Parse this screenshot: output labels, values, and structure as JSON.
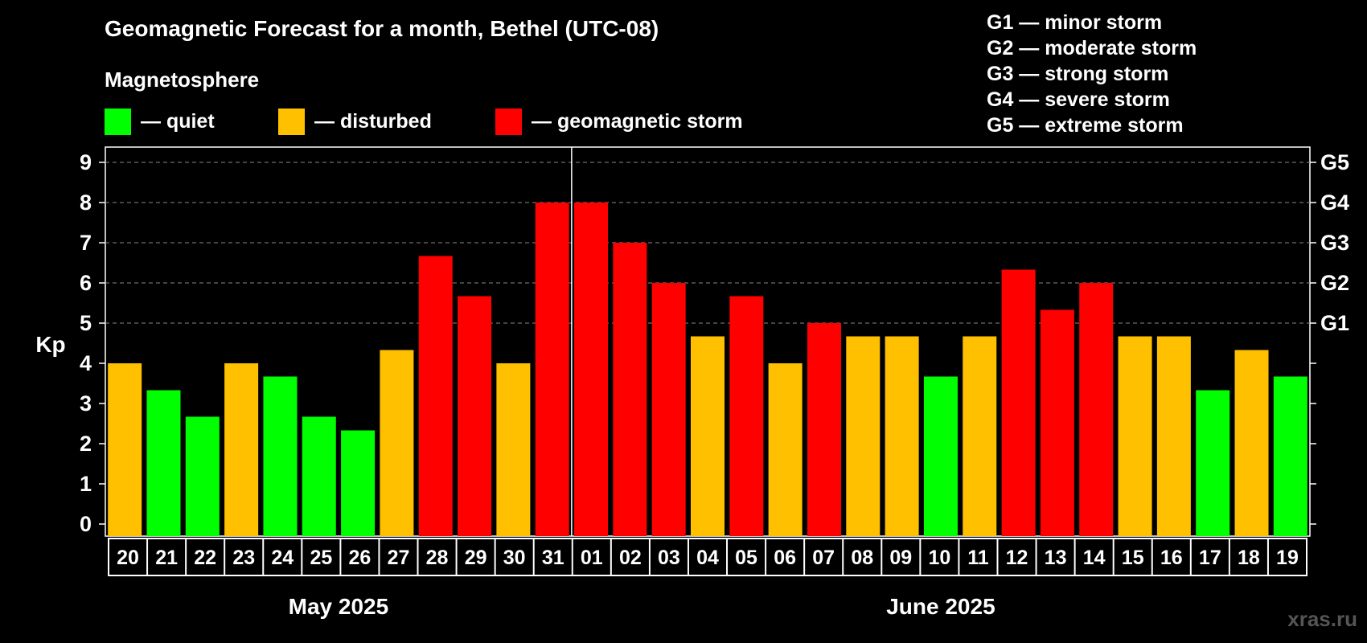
{
  "title": "Geomagnetic Forecast for a month, Bethel (UTC-08)",
  "legend": {
    "title": "Magnetosphere",
    "items": [
      {
        "label": "— quiet",
        "color": "#00ff00"
      },
      {
        "label": "— disturbed",
        "color": "#ffc000"
      },
      {
        "label": "— geomagnetic storm",
        "color": "#ff0000"
      }
    ]
  },
  "g_scale": [
    "G1 — minor storm",
    "G2 — moderate storm",
    "G3 — strong storm",
    "G4 — severe storm",
    "G5 — extreme storm"
  ],
  "watermark": "xras.ru",
  "chart_data": {
    "type": "bar",
    "ylabel": "Kp",
    "ylim": [
      0,
      9
    ],
    "y_ticks": [
      "0",
      "1",
      "2",
      "3",
      "4",
      "5",
      "6",
      "7",
      "8",
      "9"
    ],
    "right_axis_labels": [
      {
        "kp": 5,
        "label": "G1"
      },
      {
        "kp": 6,
        "label": "G2"
      },
      {
        "kp": 7,
        "label": "G3"
      },
      {
        "kp": 8,
        "label": "G4"
      },
      {
        "kp": 9,
        "label": "G5"
      }
    ],
    "grid": "dashed horizontal at Kp 5-9",
    "categories": [
      "20",
      "21",
      "22",
      "23",
      "24",
      "25",
      "26",
      "27",
      "28",
      "29",
      "30",
      "31",
      "01",
      "02",
      "03",
      "04",
      "05",
      "06",
      "07",
      "08",
      "09",
      "10",
      "11",
      "12",
      "13",
      "14",
      "15",
      "16",
      "17",
      "18",
      "19"
    ],
    "values": [
      4,
      3.33,
      2.67,
      4,
      3.67,
      2.67,
      2.33,
      4.33,
      6.67,
      5.67,
      4,
      8,
      8,
      7,
      6,
      4.67,
      5.67,
      4,
      5,
      4.67,
      4.67,
      3.67,
      4.67,
      6.33,
      5.33,
      6,
      4.67,
      4.67,
      3.33,
      4.33,
      3.67
    ],
    "status": [
      "disturbed",
      "quiet",
      "quiet",
      "disturbed",
      "quiet",
      "quiet",
      "quiet",
      "disturbed",
      "storm",
      "storm",
      "disturbed",
      "storm",
      "storm",
      "storm",
      "storm",
      "disturbed",
      "storm",
      "disturbed",
      "storm",
      "disturbed",
      "disturbed",
      "quiet",
      "disturbed",
      "storm",
      "storm",
      "storm",
      "disturbed",
      "disturbed",
      "quiet",
      "disturbed",
      "quiet"
    ],
    "status_colors": {
      "quiet": "#00ff00",
      "disturbed": "#ffc000",
      "storm": "#ff0000"
    },
    "months": [
      {
        "label": "May 2025",
        "from": 0,
        "to": 11
      },
      {
        "label": "June 2025",
        "from": 12,
        "to": 30
      }
    ]
  }
}
